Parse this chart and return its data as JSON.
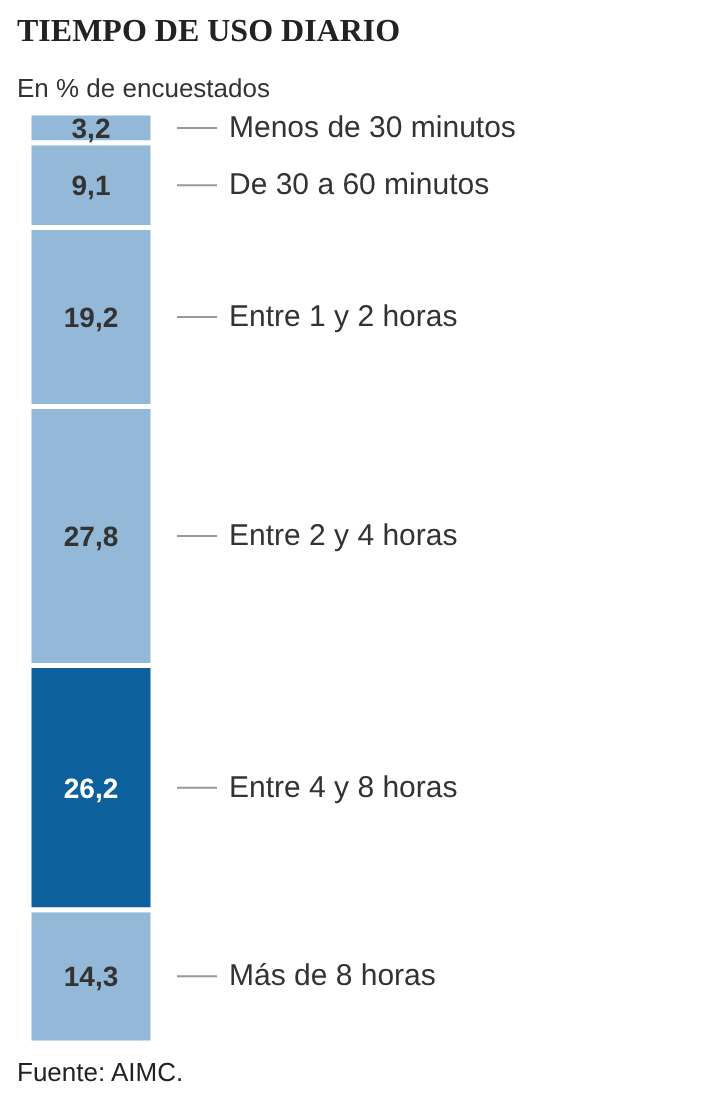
{
  "chart_data": {
    "type": "bar",
    "stacked": true,
    "title": "TIEMPO DE USO DIARIO",
    "subtitle": "En % de encuestados",
    "annotations": [
      "Fuente: AIMC."
    ],
    "categories": [
      null
    ],
    "legend": false,
    "series": [
      {
        "name": "Más de 8 horas",
        "color": "#93b8d8",
        "values": [
          14.3
        ],
        "value_labels": [
          "14,3"
        ]
      },
      {
        "name": "Entre 4 y 8 horas",
        "color": "#0c609c",
        "values": [
          26.2
        ],
        "value_labels": [
          "26,2"
        ]
      },
      {
        "name": "Entre 2 y 4 horas",
        "color": "#93b8d8",
        "values": [
          27.8
        ],
        "value_labels": [
          "27,8"
        ]
      },
      {
        "name": "Entre 1 y 2 horas",
        "color": "#93b8d8",
        "values": [
          19.2
        ],
        "value_labels": [
          "19,2"
        ]
      },
      {
        "name": "De 30 a 60 minutos",
        "color": "#93b8d8",
        "values": [
          9.1
        ],
        "value_labels": [
          "9,1"
        ]
      },
      {
        "name": "Menos de 30 minutos",
        "color": "#93b8d8",
        "values": [
          3.2
        ],
        "value_labels": [
          "3,2"
        ]
      }
    ]
  }
}
